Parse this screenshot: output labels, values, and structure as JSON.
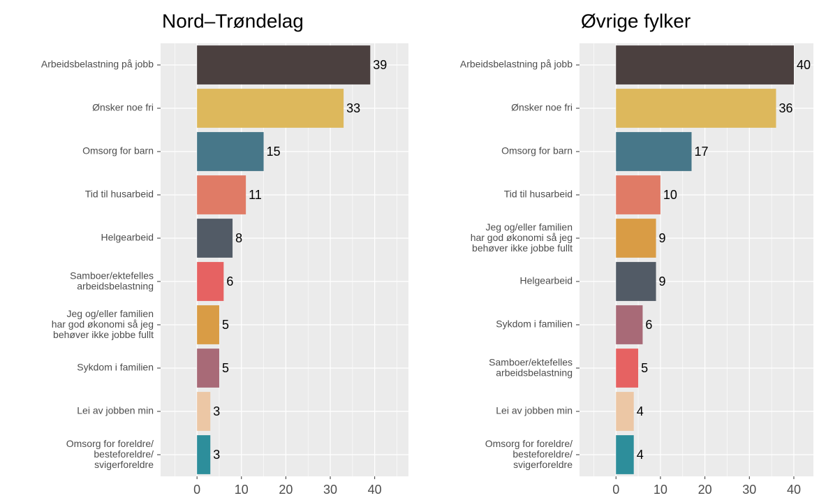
{
  "chart_data": [
    {
      "type": "bar",
      "orientation": "horizontal",
      "title": "Nord–Trøndelag",
      "categories": [
        "Arbeidsbelastning på jobb",
        "Ønsker noe fri",
        "Omsorg for barn",
        "Tid til husarbeid",
        "Helgearbeid",
        "Samboer/ektefelles\narbeidsbelastning",
        "Jeg og/eller familien\nhar god økonomi så jeg\nbehøver ikke jobbe fullt",
        "Sykdom i familien",
        "Lei av jobben min",
        "Omsorg for foreldre/\nbesteforeldre/\nsvigerforeldre"
      ],
      "values": [
        39,
        33,
        15,
        11,
        8,
        6,
        5,
        5,
        3,
        3
      ],
      "colors": [
        "#4b403f",
        "#ddb85c",
        "#477789",
        "#e07b66",
        "#525b66",
        "#e66262",
        "#d99c45",
        "#a86a77",
        "#ecc7a5",
        "#2d8e9b"
      ],
      "xlim": [
        -8.2,
        47.6
      ],
      "xticks": [
        0,
        10,
        20,
        30,
        40
      ],
      "grid": true
    },
    {
      "type": "bar",
      "orientation": "horizontal",
      "title": "Øvrige fylker",
      "categories": [
        "Arbeidsbelastning på jobb",
        "Ønsker noe fri",
        "Omsorg for barn",
        "Tid til husarbeid",
        "Jeg og/eller familien\nhar god økonomi så jeg\nbehøver ikke jobbe fullt",
        "Helgearbeid",
        "Sykdom i familien",
        "Samboer/ektefelles\narbeidsbelastning",
        "Lei av jobben min",
        "Omsorg for foreldre/\nbesteforeldre/\nsvigerforeldre"
      ],
      "values": [
        40,
        36,
        17,
        10,
        9,
        9,
        6,
        5,
        4,
        4
      ],
      "colors": [
        "#4b403f",
        "#ddb85c",
        "#477789",
        "#e07b66",
        "#d99c45",
        "#525b66",
        "#a86a77",
        "#e66262",
        "#ecc7a5",
        "#2d8e9b"
      ],
      "xlim": [
        -8.2,
        44.4
      ],
      "xticks": [
        0,
        10,
        20,
        30,
        40
      ],
      "grid": true
    }
  ]
}
